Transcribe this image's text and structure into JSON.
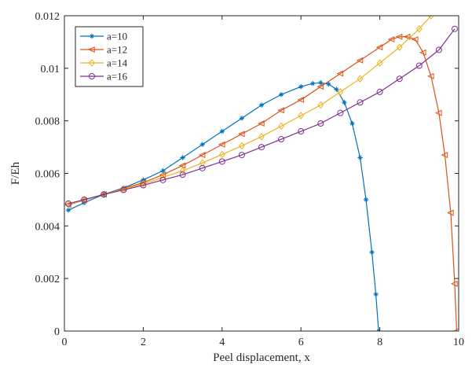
{
  "chart_data": {
    "type": "line",
    "title": "",
    "xlabel": "Peel displacement, x",
    "ylabel": "F/Eh",
    "xlim": [
      0,
      10
    ],
    "ylim": [
      0,
      0.012
    ],
    "xticks": [
      "0",
      "2",
      "4",
      "6",
      "8",
      "10"
    ],
    "yticks": [
      "0",
      "0.002",
      "0.004",
      "0.006",
      "0.008",
      "0.01",
      "0.012"
    ],
    "grid": false,
    "legend_position": "top-left",
    "series": [
      {
        "name": "a=10",
        "color": "#0072BD",
        "marker": "asterisk",
        "x": [
          0.1,
          0.5,
          1,
          1.5,
          2,
          2.5,
          3,
          3.5,
          4,
          4.5,
          5,
          5.5,
          6,
          6.3,
          6.5,
          6.7,
          6.9,
          7.1,
          7.3,
          7.5,
          7.65,
          7.8,
          7.9,
          7.97
        ],
        "y": [
          0.0046,
          0.00488,
          0.0052,
          0.00545,
          0.00575,
          0.0061,
          0.0066,
          0.0071,
          0.0076,
          0.0081,
          0.0086,
          0.009,
          0.0093,
          0.00942,
          0.00945,
          0.0094,
          0.0092,
          0.0087,
          0.0079,
          0.0066,
          0.005,
          0.003,
          0.0014,
          0.0
        ]
      },
      {
        "name": "a=12",
        "color": "#D95319",
        "marker": "triangle-left",
        "x": [
          0.1,
          0.5,
          1,
          1.5,
          2,
          2.5,
          3,
          3.5,
          4,
          4.5,
          5,
          5.5,
          6,
          6.5,
          7,
          7.5,
          8,
          8.3,
          8.5,
          8.7,
          8.9,
          9.1,
          9.3,
          9.5,
          9.65,
          9.8,
          9.9,
          9.95
        ],
        "y": [
          0.0048,
          0.00498,
          0.0052,
          0.00542,
          0.00565,
          0.00595,
          0.0063,
          0.0067,
          0.0071,
          0.0075,
          0.0079,
          0.0084,
          0.0088,
          0.0093,
          0.0098,
          0.0103,
          0.0108,
          0.0111,
          0.0112,
          0.0112,
          0.0111,
          0.0106,
          0.0097,
          0.0083,
          0.0067,
          0.0045,
          0.0018,
          0.0
        ]
      },
      {
        "name": "a=14",
        "color": "#EDB120",
        "marker": "diamond",
        "x": [
          0.1,
          0.5,
          1,
          1.5,
          2,
          2.5,
          3,
          3.5,
          4,
          4.5,
          5,
          5.5,
          6,
          6.5,
          7,
          7.5,
          8,
          8.5,
          9,
          9.3
        ],
        "y": [
          0.00482,
          0.00499,
          0.0052,
          0.0054,
          0.0056,
          0.00585,
          0.0061,
          0.0064,
          0.00672,
          0.00705,
          0.0074,
          0.0078,
          0.0082,
          0.0086,
          0.0091,
          0.0096,
          0.0102,
          0.0108,
          0.0115,
          0.012
        ]
      },
      {
        "name": "a=16",
        "color": "#7E2F8E",
        "marker": "circle",
        "x": [
          0.1,
          0.5,
          1,
          1.5,
          2,
          2.5,
          3,
          3.5,
          4,
          4.5,
          5,
          5.5,
          6,
          6.5,
          7,
          7.5,
          8,
          8.5,
          9,
          9.5,
          9.9
        ],
        "y": [
          0.00485,
          0.005,
          0.0052,
          0.00537,
          0.00555,
          0.00575,
          0.00595,
          0.0062,
          0.00645,
          0.0067,
          0.007,
          0.0073,
          0.0076,
          0.0079,
          0.0083,
          0.0087,
          0.0091,
          0.0096,
          0.0101,
          0.0107,
          0.0115
        ]
      }
    ]
  }
}
